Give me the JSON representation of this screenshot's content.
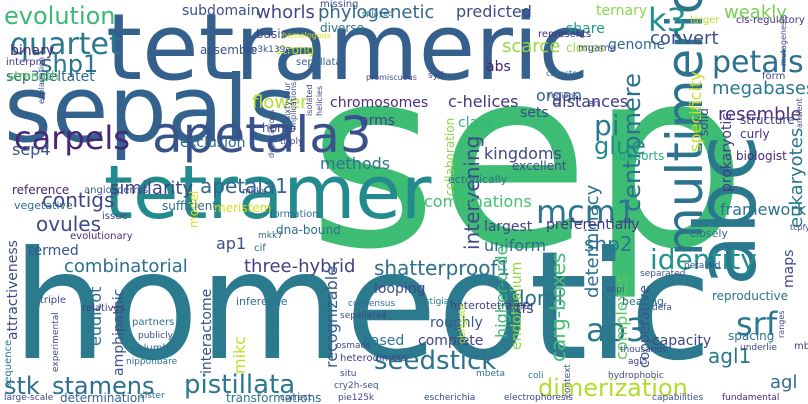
{
  "words": [
    {
      "text": "sep",
      "color": "#3dbc74"
    },
    {
      "text": "homeotic",
      "color": "#2b7a8e"
    },
    {
      "text": "sepals",
      "color": "#33638d"
    },
    {
      "text": "tetrameric",
      "color": "#355f8d"
    },
    {
      "text": "tetramer",
      "color": "#238a8d"
    },
    {
      "text": "abc",
      "color": "#2a788e"
    },
    {
      "text": "apetala3",
      "color": "#3a528b"
    },
    {
      "text": "multimeric",
      "color": "#2c738e"
    },
    {
      "text": "quartet",
      "color": "#2a788e"
    },
    {
      "text": "shp1",
      "color": "#2c738e"
    },
    {
      "text": "evolution",
      "color": "#3aba76"
    },
    {
      "text": "carpels",
      "color": "#482576"
    },
    {
      "text": "petals",
      "color": "#2d708e"
    },
    {
      "text": "k3",
      "color": "#21908d"
    },
    {
      "text": "centromere",
      "color": "#2c718e"
    },
    {
      "text": "identity",
      "color": "#21918c"
    },
    {
      "text": "ap3",
      "color": "#2a778e"
    },
    {
      "text": "srf",
      "color": "#2a788e"
    },
    {
      "text": "mcm1",
      "color": "#2a778e"
    },
    {
      "text": "pi",
      "color": "#2a788e"
    },
    {
      "text": "glue",
      "color": "#238a8d"
    },
    {
      "text": "seedstick",
      "color": "#2c728e"
    },
    {
      "text": "stk",
      "color": "#2e6e8e"
    },
    {
      "text": "stamens",
      "color": "#2d708e"
    },
    {
      "text": "pistillata",
      "color": "#2a788e"
    },
    {
      "text": "dimerization",
      "color": "#b2dd2d"
    },
    {
      "text": "agl1",
      "color": "#2a778e"
    },
    {
      "text": "agl",
      "color": "#2e6e8e"
    },
    {
      "text": "ovules",
      "color": "#3e4989"
    },
    {
      "text": "apetala1",
      "color": "#31668e"
    },
    {
      "text": "contigs",
      "color": "#3f4788"
    },
    {
      "text": "similarity",
      "color": "#404588"
    },
    {
      "text": "combinatorial",
      "color": "#2d708e"
    },
    {
      "text": "three-hybrid",
      "color": "#424086"
    },
    {
      "text": "shatterproof1",
      "color": "#2e6e8e"
    },
    {
      "text": "shp2",
      "color": "#2a788e"
    },
    {
      "text": "floral",
      "color": "#2c728e"
    },
    {
      "text": "uniform",
      "color": "#306a8e"
    },
    {
      "text": "ap1",
      "color": "#3c4f8a"
    },
    {
      "text": "kingdoms",
      "color": "#3e4989"
    },
    {
      "text": "intervening",
      "color": "#3e4a89"
    },
    {
      "text": "determinacy",
      "color": "#2d708e"
    },
    {
      "text": "resemble",
      "color": "#472f7d"
    },
    {
      "text": "megabases",
      "color": "#2a788e"
    },
    {
      "text": "convert",
      "color": "#3b518b"
    },
    {
      "text": "weakly",
      "color": "#75d054"
    },
    {
      "text": "prokaryotic",
      "color": "#443a83"
    },
    {
      "text": "eukaryotes",
      "color": "#2a788e"
    },
    {
      "text": "framework",
      "color": "#2c728e"
    },
    {
      "text": "organ",
      "color": "#31688e"
    },
    {
      "text": "sets",
      "color": "#3e4989"
    },
    {
      "text": "distances",
      "color": "#443983"
    },
    {
      "text": "c-helices",
      "color": "#463480"
    },
    {
      "text": "abs",
      "color": "#482173"
    },
    {
      "text": "scarce",
      "color": "#95d840"
    },
    {
      "text": "share",
      "color": "#1f9e89"
    },
    {
      "text": "genome",
      "color": "#31688e"
    },
    {
      "text": "flower",
      "color": "#b2dd2d"
    },
    {
      "text": "chromosomes",
      "color": "#472d7b"
    },
    {
      "text": "phylogenetic",
      "color": "#31688e"
    },
    {
      "text": "predicted",
      "color": "#3e4989"
    },
    {
      "text": "whorls",
      "color": "#3f4788"
    },
    {
      "text": "subdomain",
      "color": "#3d4e8a"
    },
    {
      "text": "binary",
      "color": "#482878"
    },
    {
      "text": "sep3deltatet",
      "color": "#31688e"
    },
    {
      "text": "strength",
      "color": "#5ec962"
    },
    {
      "text": "sep4",
      "color": "#3b528b"
    },
    {
      "text": "exclusion",
      "color": "#31688e"
    },
    {
      "text": "homo",
      "color": "#3e4a89"
    },
    {
      "text": "methods",
      "color": "#2b758e"
    },
    {
      "text": "arms",
      "color": "#404387"
    },
    {
      "text": "class",
      "color": "#30b57a"
    },
    {
      "text": "combinations",
      "color": "#44bf70"
    },
    {
      "text": "largest",
      "color": "#414487"
    },
    {
      "text": "preferentially",
      "color": "#453781"
    },
    {
      "text": "looping",
      "color": "#3e4989"
    },
    {
      "text": "higher-order",
      "color": "#3bbb75"
    },
    {
      "text": "endothelium",
      "color": "#8fd744"
    },
    {
      "text": "complete",
      "color": "#404688"
    },
    {
      "text": "based",
      "color": "#2b758e"
    },
    {
      "text": "recognizable",
      "color": "#38598c"
    },
    {
      "text": "interactome",
      "color": "#3d4e8a"
    },
    {
      "text": "transformations",
      "color": "#2b748e"
    },
    {
      "text": "determination",
      "color": "#34608d"
    },
    {
      "text": "complexes",
      "color": "#5ac864"
    },
    {
      "text": "cooperative",
      "color": "#3a548c"
    },
    {
      "text": "capacity",
      "color": "#3f4788"
    },
    {
      "text": "roughly",
      "color": "#38588c"
    },
    {
      "text": "tfs",
      "color": "#424186"
    },
    {
      "text": "carg-boxes",
      "color": "#44bf70"
    },
    {
      "text": "mikc",
      "color": "#c2df23"
    },
    {
      "text": "eudicot",
      "color": "#2d708e"
    },
    {
      "text": "amphipathic",
      "color": "#3b528b"
    },
    {
      "text": "attractiveness",
      "color": "#3f4889"
    },
    {
      "text": "termed",
      "color": "#39568c"
    },
    {
      "text": "meristem",
      "color": "#d0e11c"
    },
    {
      "text": "model",
      "color": "#d8e219"
    },
    {
      "text": "dna-bound",
      "color": "#2e6f8e"
    },
    {
      "text": "specificity",
      "color": "#c8e020"
    },
    {
      "text": "ternary",
      "color": "#8bd646"
    },
    {
      "text": "maps",
      "color": "#3e4989"
    },
    {
      "text": "reproductive",
      "color": "#2d708e"
    },
    {
      "text": "spacing",
      "color": "#2c738e"
    },
    {
      "text": "solid",
      "color": "#3f4889"
    },
    {
      "text": "supports",
      "color": "#25ab82"
    },
    {
      "text": "biologist",
      "color": "#482979"
    },
    {
      "text": "curly",
      "color": "#46327e"
    },
    {
      "text": "structure",
      "color": "#404587"
    },
    {
      "text": "form",
      "color": "#414487"
    },
    {
      "text": "cis-regulatory",
      "color": "#472e7c"
    },
    {
      "text": "represents",
      "color": "#46307e"
    },
    {
      "text": "clones",
      "color": "#9bd93c"
    },
    {
      "text": "basis",
      "color": "#3f4889"
    },
    {
      "text": "strong",
      "color": "#bddf26"
    },
    {
      "text": "assemble",
      "color": "#3b518b"
    },
    {
      "text": "diverse",
      "color": "#2d718e"
    },
    {
      "text": "missing",
      "color": "#3e4989"
    },
    {
      "text": "splayed",
      "color": "#2a768e"
    },
    {
      "text": "larger",
      "color": "#b5de2b"
    },
    {
      "text": "interpro",
      "color": "#443983"
    },
    {
      "text": "ap3k139e",
      "color": "#3b518b"
    },
    {
      "text": "sepallatai",
      "color": "#33628d"
    },
    {
      "text": "homologous",
      "color": "#dde318"
    },
    {
      "text": "mgama",
      "color": "#3f4889"
    },
    {
      "text": "collaboration",
      "color": "#8fd744"
    },
    {
      "text": "excellent",
      "color": "#3e4989"
    },
    {
      "text": "formation",
      "color": "#2e6e8e"
    },
    {
      "text": "sufficient",
      "color": "#2f6c8e"
    },
    {
      "text": "angiosperms",
      "color": "#39568c"
    },
    {
      "text": "reference",
      "color": "#482475"
    },
    {
      "text": "vegetative",
      "color": "#2e6e8e"
    },
    {
      "text": "evolutionary",
      "color": "#472f7d"
    },
    {
      "text": "issue",
      "color": "#3e4a89"
    },
    {
      "text": "mkk7",
      "color": "#2d718e"
    },
    {
      "text": "cif",
      "color": "#2e6e8e"
    },
    {
      "text": "mkks",
      "color": "#3d4d8a"
    },
    {
      "text": "inference",
      "color": "#2c728e"
    },
    {
      "text": "consensus",
      "color": "#2e6e8e"
    },
    {
      "text": "vestigial",
      "color": "#2a768e"
    },
    {
      "text": "heterotetramer",
      "color": "#414487"
    },
    {
      "text": "bearing",
      "color": "#2d708e"
    },
    {
      "text": "defa",
      "color": "#3b528b"
    },
    {
      "text": "petaloid",
      "color": "#3b518b"
    },
    {
      "text": "separated",
      "color": "#39568c"
    },
    {
      "text": "closely",
      "color": "#2e6e8e"
    },
    {
      "text": "ectopically",
      "color": "#2e6e8e"
    },
    {
      "text": "triple",
      "color": "#3e4989"
    },
    {
      "text": "relatives",
      "color": "#443983"
    },
    {
      "text": "partners",
      "color": "#2d718e"
    },
    {
      "text": "publicly",
      "color": "#3d4e8a"
    },
    {
      "text": "columbia",
      "color": "#2f6c8e"
    },
    {
      "text": "nipponbare",
      "color": "#2d718e"
    },
    {
      "text": "experimental",
      "color": "#3e4a89"
    },
    {
      "text": "repetitive",
      "color": "#2a788e"
    },
    {
      "text": "osmads",
      "color": "#3f4788"
    },
    {
      "text": "heterodimers",
      "color": "#404387"
    },
    {
      "text": "sepallata4",
      "color": "#3e4989"
    },
    {
      "text": "obligate",
      "color": "#b5de2b"
    },
    {
      "text": "thousands",
      "color": "#3f4889"
    },
    {
      "text": "agl5",
      "color": "#443983"
    },
    {
      "text": "hydrophobic",
      "color": "#3b518b"
    },
    {
      "text": "coli",
      "color": "#2c728e"
    },
    {
      "text": "escherichia",
      "color": "#3e4989"
    },
    {
      "text": "electrophoresis",
      "color": "#3f4788"
    },
    {
      "text": "pie125k",
      "color": "#3f4889"
    },
    {
      "text": "cry2h-seq",
      "color": "#3b528b"
    },
    {
      "text": "situ",
      "color": "#3e4989"
    },
    {
      "text": "correct",
      "color": "#3f4889"
    },
    {
      "text": "sister",
      "color": "#2e6e8e"
    },
    {
      "text": "large-scale",
      "color": "#3f4788"
    },
    {
      "text": "capabilities",
      "color": "#3b528b"
    },
    {
      "text": "fundamental",
      "color": "#482979"
    },
    {
      "text": "mb",
      "color": "#424086"
    },
    {
      "text": "underlie",
      "color": "#3e4989"
    },
    {
      "text": "context",
      "color": "#3b518b"
    },
    {
      "text": "mbeta",
      "color": "#2d718e"
    },
    {
      "text": "sequence",
      "color": "#2a788e"
    },
    {
      "text": "sepi",
      "color": "#3b528b"
    },
    {
      "text": "en",
      "color": "#3e4989"
    },
    {
      "text": "regions",
      "color": "#3e4989"
    },
    {
      "text": "promiscuous",
      "color": "#3f4889"
    },
    {
      "text": "isolated",
      "color": "#3e4989"
    },
    {
      "text": "helicies",
      "color": "#3e4989"
    },
    {
      "text": "duplications",
      "color": "#3f4889"
    },
    {
      "text": "triply",
      "color": "#3f4889"
    },
    {
      "text": "implications",
      "color": "#3e4989"
    },
    {
      "text": "sixty-four",
      "color": "#3b518b"
    },
    {
      "text": "ancient",
      "color": "#3e4989"
    },
    {
      "text": "collected",
      "color": "#2e6e8e"
    },
    {
      "text": "explanation",
      "color": "#3b518b"
    },
    {
      "text": "tcpfy1",
      "color": "#3e4989"
    },
    {
      "text": "mutagenesis",
      "color": "#3f4889"
    },
    {
      "text": "ranges",
      "color": "#3e4989"
    },
    {
      "text": "syd",
      "color": "#3f4889"
    }
  ]
}
